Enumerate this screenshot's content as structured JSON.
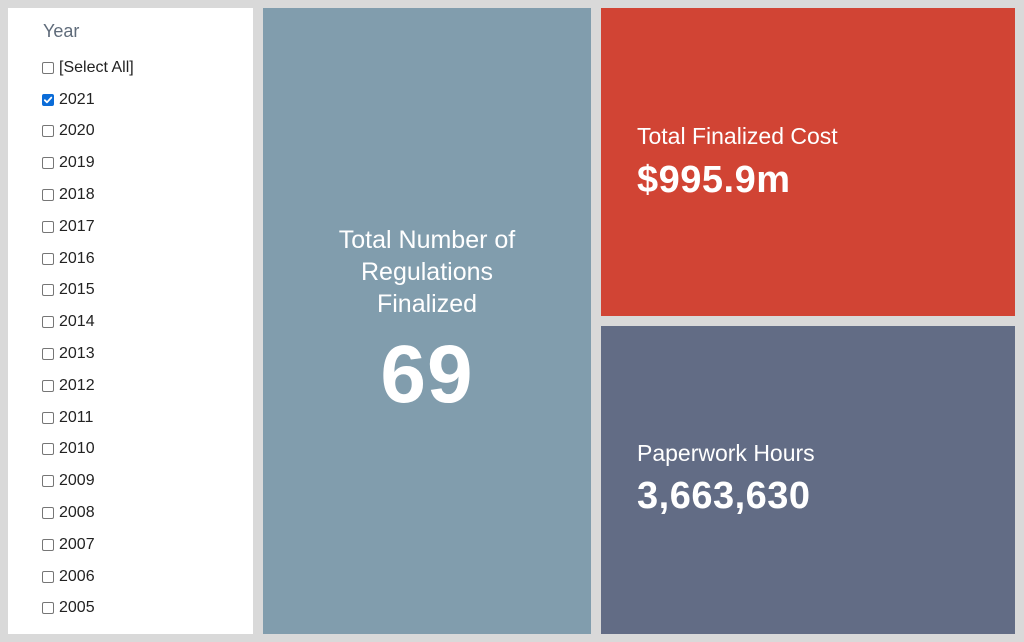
{
  "filter": {
    "title": "Year",
    "items": [
      {
        "label": "[Select All]",
        "checked": false
      },
      {
        "label": "2021",
        "checked": true
      },
      {
        "label": "2020",
        "checked": false
      },
      {
        "label": "2019",
        "checked": false
      },
      {
        "label": "2018",
        "checked": false
      },
      {
        "label": "2017",
        "checked": false
      },
      {
        "label": "2016",
        "checked": false
      },
      {
        "label": "2015",
        "checked": false
      },
      {
        "label": "2014",
        "checked": false
      },
      {
        "label": "2013",
        "checked": false
      },
      {
        "label": "2012",
        "checked": false
      },
      {
        "label": "2011",
        "checked": false
      },
      {
        "label": "2010",
        "checked": false
      },
      {
        "label": "2009",
        "checked": false
      },
      {
        "label": "2008",
        "checked": false
      },
      {
        "label": "2007",
        "checked": false
      },
      {
        "label": "2006",
        "checked": false
      },
      {
        "label": "2005",
        "checked": false
      }
    ]
  },
  "tiles": {
    "regulations": {
      "label": "Total Number of Regulations Finalized",
      "value": "69",
      "color": "#819dad"
    },
    "cost": {
      "label": "Total Finalized Cost",
      "value": "$995.9m",
      "color": "#d14434"
    },
    "hours": {
      "label": "Paperwork Hours",
      "value": "3,663,630",
      "color": "#626c85"
    }
  },
  "colors": {
    "checkbox_checked": "#0b6cd8",
    "background": "#d9d9d9"
  }
}
